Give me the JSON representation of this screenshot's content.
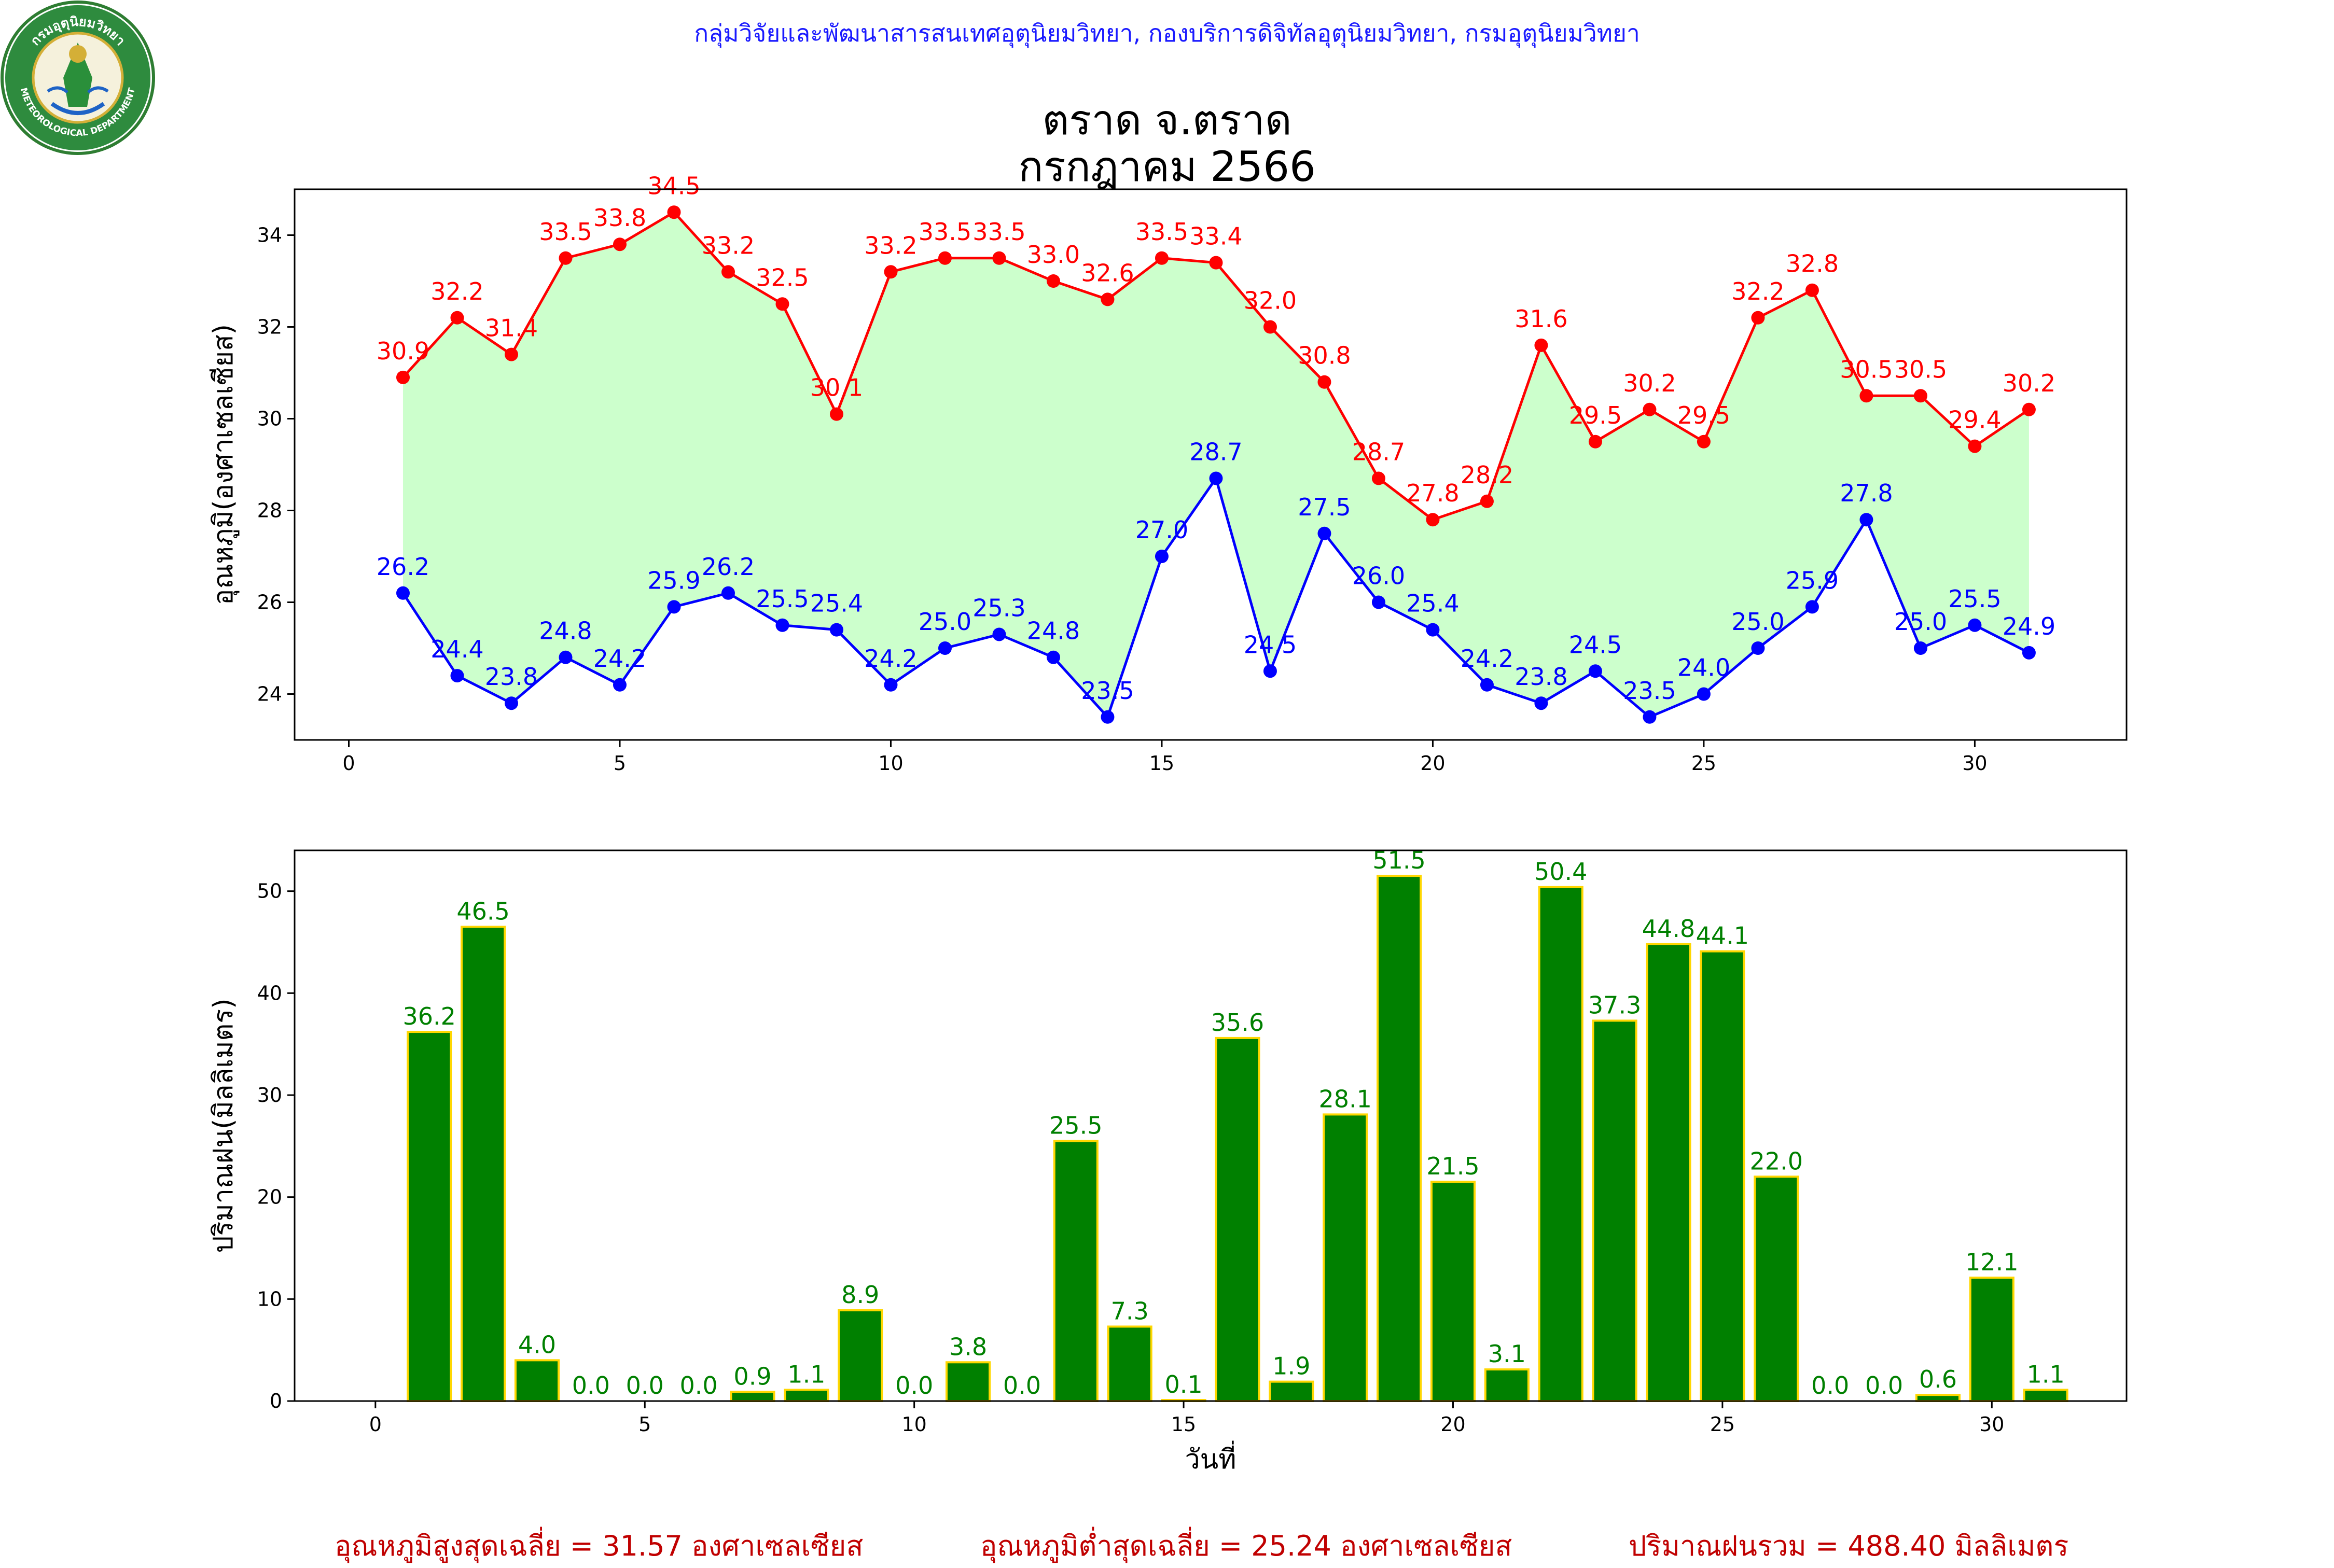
{
  "header": {
    "source": "กลุ่มวิจัยและพัฒนาสารสนเทศอุตุนิยมวิทยา, กองบริการดิจิทัลอุตุนิยมวิทยา, กรมอุตุนิยมวิทยา",
    "title_line1": "ตราด จ.ตราด",
    "title_line2": "กรกฎาคม 2566",
    "logo_text_top": "กรมอุตุนิยมวิทยา",
    "logo_text_bottom": "METEOROLOGICAL DEPARTMENT"
  },
  "summary": {
    "max_avg": "อุณหภูมิสูงสุดเฉลี่ย = 31.57 องศาเซลเซียส",
    "min_avg": "อุณหภูมิต่ำสุดเฉลี่ย = 25.24 องศาเซลเซียส",
    "rain_total": "ปริมาณฝนรวม = 488.40 มิลลิเมตร"
  },
  "colors": {
    "max_line": "#ff0000",
    "min_line": "#0000ff",
    "fill": "#ccffcc",
    "bar": "#008000",
    "bar_edge": "#ffd700",
    "rain_label": "#008000"
  },
  "chart_data": [
    {
      "type": "line",
      "ylabel": "อุณหภูมิ(องศาเซลเซียส)",
      "xlabel": "",
      "xlim": [
        -1,
        32.8
      ],
      "ylim": [
        23,
        35
      ],
      "xticks": [
        0,
        5,
        10,
        15,
        20,
        25,
        30
      ],
      "yticks": [
        24,
        26,
        28,
        30,
        32,
        34
      ],
      "x": [
        1,
        2,
        3,
        4,
        5,
        6,
        7,
        8,
        9,
        10,
        11,
        12,
        13,
        14,
        15,
        16,
        17,
        18,
        19,
        20,
        21,
        22,
        23,
        24,
        25,
        26,
        27,
        28,
        29,
        30,
        31
      ],
      "series": [
        {
          "values": [
            30.9,
            32.2,
            31.4,
            33.5,
            33.8,
            34.5,
            33.2,
            32.5,
            30.1,
            33.2,
            33.5,
            33.5,
            33.0,
            32.6,
            33.5,
            33.4,
            32.0,
            30.8,
            28.7,
            27.8,
            28.2,
            31.6,
            29.5,
            30.2,
            29.5,
            32.2,
            32.8,
            30.5,
            30.5,
            29.4,
            30.2
          ]
        },
        {
          "values": [
            26.2,
            24.4,
            23.8,
            24.8,
            24.2,
            25.9,
            26.2,
            25.5,
            25.4,
            24.2,
            25.0,
            25.3,
            24.8,
            23.5,
            27.0,
            28.7,
            24.5,
            27.5,
            26.0,
            25.4,
            24.2,
            23.8,
            24.5,
            23.5,
            24.0,
            25.0,
            25.9,
            27.8,
            25.0,
            25.5,
            24.9
          ]
        }
      ],
      "fill_between": true
    },
    {
      "type": "bar",
      "ylabel": "ปริมาณฝน(มิลลิเมตร)",
      "xlabel": "วันที่",
      "xlim": [
        -1.5,
        32.5
      ],
      "ylim": [
        0,
        54
      ],
      "xticks": [
        0,
        5,
        10,
        15,
        20,
        25,
        30
      ],
      "yticks": [
        0,
        10,
        20,
        30,
        40,
        50
      ],
      "x": [
        1,
        2,
        3,
        4,
        5,
        6,
        7,
        8,
        9,
        10,
        11,
        12,
        13,
        14,
        15,
        16,
        17,
        18,
        19,
        20,
        21,
        22,
        23,
        24,
        25,
        26,
        27,
        28,
        29,
        30,
        31
      ],
      "values": [
        36.2,
        46.5,
        4.0,
        0.0,
        0.0,
        0.0,
        0.9,
        1.1,
        8.9,
        0.0,
        3.8,
        0.0,
        25.5,
        7.3,
        0.1,
        35.6,
        1.9,
        28.1,
        51.5,
        21.5,
        3.1,
        50.4,
        37.3,
        44.8,
        44.1,
        22.0,
        0.0,
        0.0,
        0.6,
        12.1,
        1.1
      ]
    }
  ]
}
